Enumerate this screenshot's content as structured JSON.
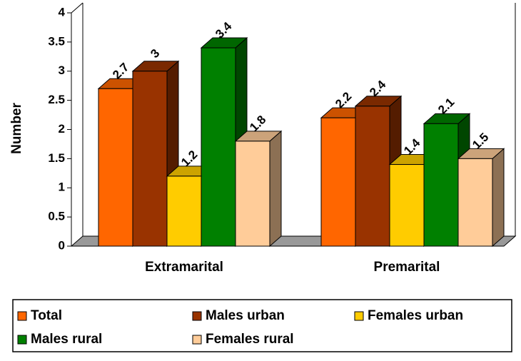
{
  "chart_data": {
    "type": "bar3d",
    "y_label": "Number",
    "categories": [
      "Extramarital",
      "Premarital"
    ],
    "series": [
      {
        "name": "Total",
        "color": "#ff6600",
        "values": [
          2.7,
          2.2
        ]
      },
      {
        "name": "Males urban",
        "color": "#993300",
        "values": [
          3,
          2.4
        ]
      },
      {
        "name": "Females urban",
        "color": "#ffcc00",
        "values": [
          1.2,
          1.4
        ]
      },
      {
        "name": "Males rural",
        "color": "#008000",
        "values": [
          3.4,
          2.1
        ]
      },
      {
        "name": "Females rural",
        "color": "#ffcc99",
        "values": [
          1.8,
          1.5
        ]
      }
    ],
    "ylim": [
      0,
      4
    ],
    "yticks": [
      0,
      0.5,
      1,
      1.5,
      2,
      2.5,
      3,
      3.5,
      4
    ],
    "legend": "bottom"
  }
}
